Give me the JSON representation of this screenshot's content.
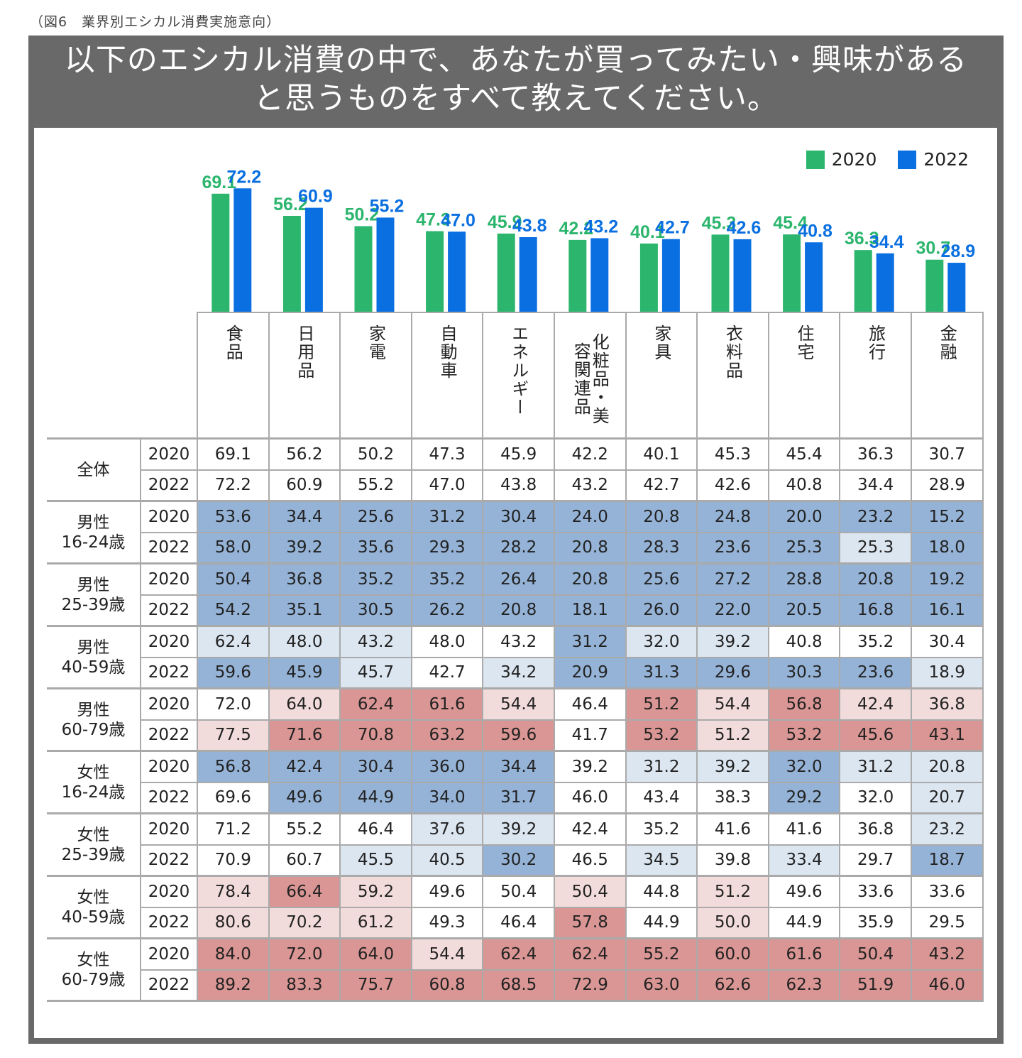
{
  "caption": "（図6　業界別エシカル消費実施意向）",
  "question": {
    "line1": "以下のエシカル消費の中で、あなたが買ってみたい・興味がある",
    "line2": "と思うものをすべて教えてください。"
  },
  "legend": [
    {
      "label": "2020",
      "color": "#2bb56d"
    },
    {
      "label": "2022",
      "color": "#0a6fe0"
    }
  ],
  "colors": {
    "series_2020": "#2bb56d",
    "series_2022": "#0a6fe0",
    "label_2020": "#2bb56d",
    "label_2022": "#0a6fe0",
    "heat_dark_blue": "#95b3d7",
    "heat_light_blue": "#dce6f1",
    "heat_white": "#ffffff",
    "heat_light_red": "#f2dcdb",
    "heat_dark_red": "#da9694"
  },
  "chart_data": [
    {
      "type": "bar",
      "title": "以下のエシカル消費の中で、あなたが買ってみたい・興味があると思うものをすべて教えてください。",
      "categories": [
        "食品",
        "日用品",
        "家電",
        "自動車",
        "エネルギー",
        "化粧品・美容関連品",
        "家具",
        "衣料品",
        "住宅",
        "旅行",
        "金融"
      ],
      "series": [
        {
          "name": "2020",
          "values": [
            69.1,
            56.2,
            50.2,
            47.3,
            45.9,
            42.2,
            40.1,
            45.3,
            45.4,
            36.3,
            30.7
          ]
        },
        {
          "name": "2022",
          "values": [
            72.2,
            60.9,
            55.2,
            47.0,
            43.8,
            43.2,
            42.7,
            42.6,
            40.8,
            34.4,
            28.9
          ]
        }
      ],
      "xlabel": "",
      "ylabel": "%",
      "ylim": [
        0,
        80
      ],
      "grid": false,
      "legend_position": "top-right"
    },
    {
      "type": "heatmap",
      "columns": [
        "食品",
        "日用品",
        "家電",
        "自動車",
        "エネルギー",
        "化粧品・美容関連品",
        "家具",
        "衣料品",
        "住宅",
        "旅行",
        "金融"
      ],
      "groups": [
        {
          "label": [
            "全体"
          ],
          "rows": [
            {
              "year": "2020",
              "values": [
                69.1,
                56.2,
                50.2,
                47.3,
                45.9,
                42.2,
                40.1,
                45.3,
                45.4,
                36.3,
                30.7
              ],
              "shade": [
                "w",
                "w",
                "w",
                "w",
                "w",
                "w",
                "w",
                "w",
                "w",
                "w",
                "w"
              ]
            },
            {
              "year": "2022",
              "values": [
                72.2,
                60.9,
                55.2,
                47.0,
                43.8,
                43.2,
                42.7,
                42.6,
                40.8,
                34.4,
                28.9
              ],
              "shade": [
                "w",
                "w",
                "w",
                "w",
                "w",
                "w",
                "w",
                "w",
                "w",
                "w",
                "w"
              ]
            }
          ]
        },
        {
          "label": [
            "男性",
            "16-24歳"
          ],
          "rows": [
            {
              "year": "2020",
              "values": [
                53.6,
                34.4,
                25.6,
                31.2,
                30.4,
                24.0,
                20.8,
                24.8,
                20.0,
                23.2,
                15.2
              ],
              "shade": [
                "db",
                "db",
                "db",
                "db",
                "db",
                "db",
                "db",
                "db",
                "db",
                "db",
                "db"
              ]
            },
            {
              "year": "2022",
              "values": [
                58.0,
                39.2,
                35.6,
                29.3,
                28.2,
                20.8,
                28.3,
                23.6,
                25.3,
                25.3,
                18.0
              ],
              "shade": [
                "db",
                "db",
                "db",
                "db",
                "db",
                "db",
                "db",
                "db",
                "db",
                "lb",
                "db"
              ]
            }
          ]
        },
        {
          "label": [
            "男性",
            "25-39歳"
          ],
          "rows": [
            {
              "year": "2020",
              "values": [
                50.4,
                36.8,
                35.2,
                35.2,
                26.4,
                20.8,
                25.6,
                27.2,
                28.8,
                20.8,
                19.2
              ],
              "shade": [
                "db",
                "db",
                "db",
                "db",
                "db",
                "db",
                "db",
                "db",
                "db",
                "db",
                "db"
              ]
            },
            {
              "year": "2022",
              "values": [
                54.2,
                35.1,
                30.5,
                26.2,
                20.8,
                18.1,
                26.0,
                22.0,
                20.5,
                16.8,
                16.1
              ],
              "shade": [
                "db",
                "db",
                "db",
                "db",
                "db",
                "db",
                "db",
                "db",
                "db",
                "db",
                "db"
              ]
            }
          ]
        },
        {
          "label": [
            "男性",
            "40-59歳"
          ],
          "rows": [
            {
              "year": "2020",
              "values": [
                62.4,
                48.0,
                43.2,
                48.0,
                43.2,
                31.2,
                32.0,
                39.2,
                40.8,
                35.2,
                30.4
              ],
              "shade": [
                "lb",
                "lb",
                "lb",
                "w",
                "w",
                "db",
                "lb",
                "lb",
                "w",
                "w",
                "w"
              ]
            },
            {
              "year": "2022",
              "values": [
                59.6,
                45.9,
                45.7,
                42.7,
                34.2,
                20.9,
                31.3,
                29.6,
                30.3,
                23.6,
                18.9
              ],
              "shade": [
                "db",
                "db",
                "lb",
                "w",
                "lb",
                "db",
                "db",
                "db",
                "db",
                "db",
                "lb"
              ]
            }
          ]
        },
        {
          "label": [
            "男性",
            "60-79歳"
          ],
          "rows": [
            {
              "year": "2020",
              "values": [
                72.0,
                64.0,
                62.4,
                61.6,
                54.4,
                46.4,
                51.2,
                54.4,
                56.8,
                42.4,
                36.8
              ],
              "shade": [
                "w",
                "lr",
                "dr",
                "dr",
                "lr",
                "w",
                "dr",
                "lr",
                "dr",
                "lr",
                "lr"
              ]
            },
            {
              "year": "2022",
              "values": [
                77.5,
                71.6,
                70.8,
                63.2,
                59.6,
                41.7,
                53.2,
                51.2,
                53.2,
                45.6,
                43.1
              ],
              "shade": [
                "lr",
                "dr",
                "dr",
                "dr",
                "dr",
                "w",
                "dr",
                "lr",
                "dr",
                "dr",
                "dr"
              ]
            }
          ]
        },
        {
          "label": [
            "女性",
            "16-24歳"
          ],
          "rows": [
            {
              "year": "2020",
              "values": [
                56.8,
                42.4,
                30.4,
                36.0,
                34.4,
                39.2,
                31.2,
                39.2,
                32.0,
                31.2,
                20.8
              ],
              "shade": [
                "db",
                "db",
                "db",
                "db",
                "db",
                "w",
                "lb",
                "lb",
                "db",
                "lb",
                "lb"
              ]
            },
            {
              "year": "2022",
              "values": [
                69.6,
                49.6,
                44.9,
                34.0,
                31.7,
                46.0,
                43.4,
                38.3,
                29.2,
                32.0,
                20.7
              ],
              "shade": [
                "w",
                "db",
                "db",
                "db",
                "db",
                "w",
                "w",
                "w",
                "db",
                "w",
                "lb"
              ]
            }
          ]
        },
        {
          "label": [
            "女性",
            "25-39歳"
          ],
          "rows": [
            {
              "year": "2020",
              "values": [
                71.2,
                55.2,
                46.4,
                37.6,
                39.2,
                42.4,
                35.2,
                41.6,
                41.6,
                36.8,
                23.2
              ],
              "shade": [
                "w",
                "w",
                "w",
                "lb",
                "lb",
                "w",
                "w",
                "w",
                "w",
                "w",
                "lb"
              ]
            },
            {
              "year": "2022",
              "values": [
                70.9,
                60.7,
                45.5,
                40.5,
                30.2,
                46.5,
                34.5,
                39.8,
                33.4,
                29.7,
                18.7
              ],
              "shade": [
                "w",
                "w",
                "lb",
                "lb",
                "db",
                "w",
                "lb",
                "w",
                "lb",
                "w",
                "db"
              ]
            }
          ]
        },
        {
          "label": [
            "女性",
            "40-59歳"
          ],
          "rows": [
            {
              "year": "2020",
              "values": [
                78.4,
                66.4,
                59.2,
                49.6,
                50.4,
                50.4,
                44.8,
                51.2,
                49.6,
                33.6,
                33.6
              ],
              "shade": [
                "lr",
                "dr",
                "lr",
                "w",
                "w",
                "lr",
                "w",
                "lr",
                "w",
                "w",
                "w"
              ]
            },
            {
              "year": "2022",
              "values": [
                80.6,
                70.2,
                61.2,
                49.3,
                46.4,
                57.8,
                44.9,
                50.0,
                44.9,
                35.9,
                29.5
              ],
              "shade": [
                "lr",
                "lr",
                "lr",
                "w",
                "w",
                "dr",
                "w",
                "lr",
                "w",
                "w",
                "w"
              ]
            }
          ]
        },
        {
          "label": [
            "女性",
            "60-79歳"
          ],
          "rows": [
            {
              "year": "2020",
              "values": [
                84.0,
                72.0,
                64.0,
                54.4,
                62.4,
                62.4,
                55.2,
                60.0,
                61.6,
                50.4,
                43.2
              ],
              "shade": [
                "dr",
                "dr",
                "dr",
                "lr",
                "dr",
                "dr",
                "dr",
                "dr",
                "dr",
                "dr",
                "dr"
              ]
            },
            {
              "year": "2022",
              "values": [
                89.2,
                83.3,
                75.7,
                60.8,
                68.5,
                72.9,
                63.0,
                62.6,
                62.3,
                51.9,
                46.0
              ],
              "shade": [
                "dr",
                "dr",
                "dr",
                "dr",
                "dr",
                "dr",
                "dr",
                "dr",
                "dr",
                "dr",
                "dr"
              ]
            }
          ]
        }
      ]
    }
  ]
}
